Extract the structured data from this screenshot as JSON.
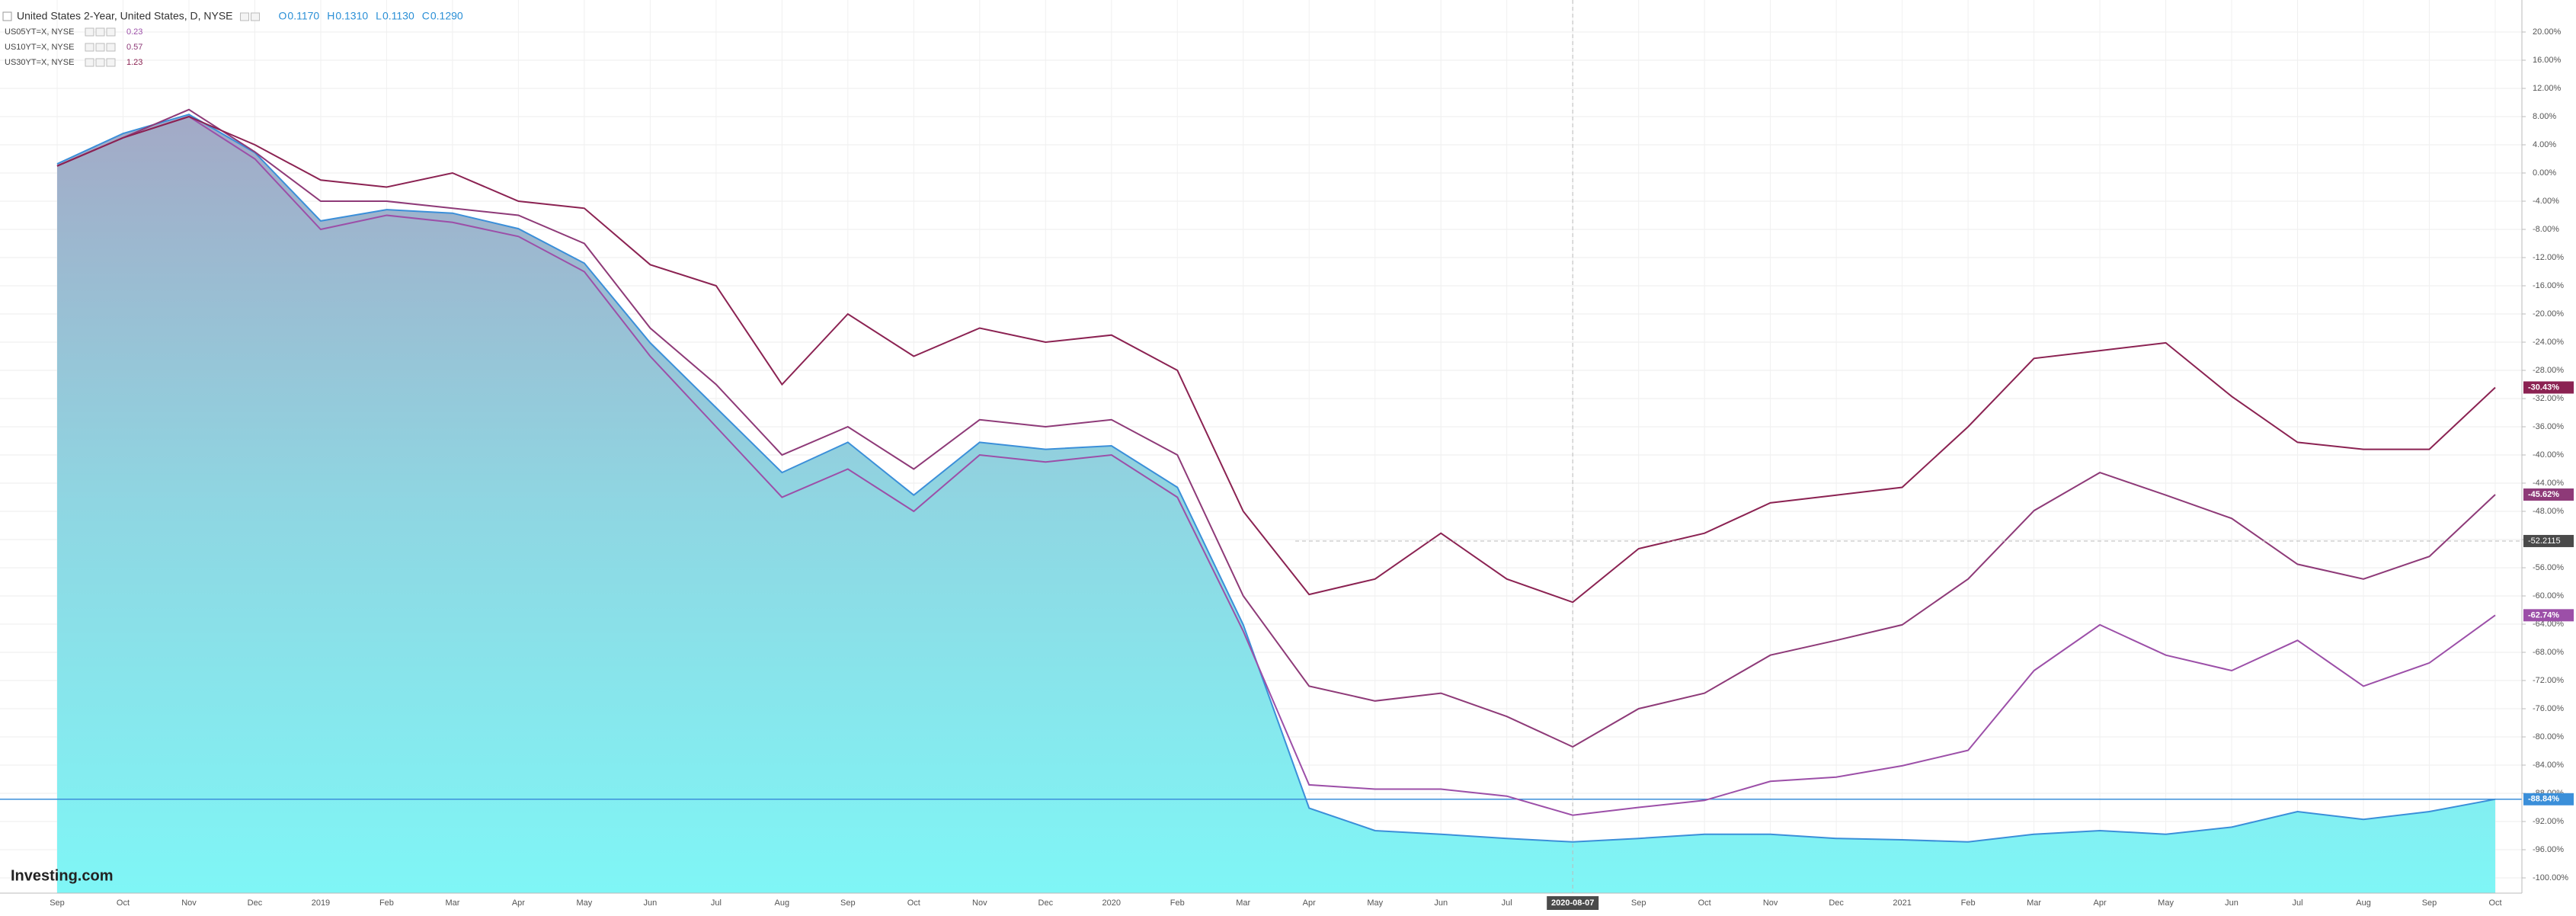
{
  "chart_data": {
    "type": "line",
    "watermark": "Investing.com",
    "ohlc": [
      {
        "label": "O",
        "value": "0.1170"
      },
      {
        "label": "H",
        "value": "0.1310"
      },
      {
        "label": "L",
        "value": "0.1130"
      },
      {
        "label": "C",
        "value": "0.1290"
      }
    ],
    "categories": [
      "Sep",
      "Oct",
      "Nov",
      "Dec",
      "2019",
      "Feb",
      "Mar",
      "Apr",
      "May",
      "Jun",
      "Jul",
      "Aug",
      "Sep",
      "Oct",
      "Nov",
      "Dec",
      "2020",
      "Feb",
      "Mar",
      "Apr",
      "May",
      "Jun",
      "Jul",
      null,
      "Sep",
      "Oct",
      "Nov",
      "Dec",
      "2021",
      "Feb",
      "Mar",
      "Apr",
      "May",
      "Jun",
      "Jul",
      "Aug",
      "Sep",
      "Oct"
    ],
    "series": [
      {
        "name": "United States 2-Year, United States, D, NYSE",
        "color": "#3b8fd9",
        "area": true,
        "last_value_label": "-88.84%",
        "values": [
          1.3,
          5.6,
          8.3,
          2.9,
          -6.8,
          -5.2,
          -5.7,
          -7.9,
          -12.8,
          -24.1,
          -33.3,
          -42.5,
          -38.2,
          -45.7,
          -38.2,
          -39.2,
          -38.7,
          -44.6,
          -64.1,
          -90.1,
          -93.3,
          -93.8,
          -94.4,
          -94.9,
          -94.4,
          -93.8,
          -93.8,
          -94.4,
          -94.6,
          -94.9,
          -93.8,
          -93.3,
          -93.8,
          -92.8,
          -90.6,
          -91.7,
          -90.6,
          -88.84
        ]
      },
      {
        "name": "US05YT=X, NYSE",
        "legend_value": "0.23",
        "color": "#9c4fa8",
        "last_value_label": "-62.74%",
        "values": [
          1,
          5,
          8,
          2,
          -8,
          -6,
          -7,
          -9,
          -14,
          -26,
          -36,
          -46,
          -42,
          -48,
          -40,
          -41,
          -40,
          -46,
          -65,
          -86.8,
          -87.4,
          -87.4,
          -88.4,
          -91.1,
          -90,
          -89,
          -86.3,
          -85.7,
          -84.1,
          -81.9,
          -70.6,
          -64.1,
          -68.4,
          -70.6,
          -66.3,
          -72.8,
          -69.5,
          -62.74
        ]
      },
      {
        "name": "US10YT=X, NYSE",
        "legend_value": "0.57",
        "color": "#8e3a78",
        "last_value_label": "-45.62%",
        "values": [
          1,
          5,
          9,
          3,
          -4,
          -4,
          -5,
          -6,
          -10,
          -22,
          -30,
          -40,
          -36,
          -42,
          -35,
          -36,
          -35,
          -40,
          -60,
          -72.8,
          -74.9,
          -73.8,
          -77.1,
          -81.4,
          -76,
          -73.8,
          -68.4,
          -66.3,
          -64.1,
          -57.6,
          -47.9,
          -42.5,
          -45.7,
          -49,
          -55.5,
          -57.6,
          -54.4,
          -45.62
        ]
      },
      {
        "name": "US30YT=X, NYSE",
        "legend_value": "1.23",
        "color": "#8b2252",
        "last_value_label": "-30.43%",
        "values": [
          1,
          5,
          8,
          4,
          -1,
          -2,
          0,
          -4,
          -5,
          -13,
          -16,
          -30,
          -20,
          -26,
          -22,
          -24,
          -23,
          -28,
          -48,
          -59.8,
          -57.6,
          -51.1,
          -57.6,
          -60.9,
          -53.3,
          -51.1,
          -46.8,
          -45.7,
          -44.6,
          -36,
          -26.3,
          -25.2,
          -24.1,
          -31.7,
          -38.2,
          -39.2,
          -39.2,
          -30.43
        ]
      }
    ],
    "crosshair": {
      "x_index": 23,
      "x_label": "2020-08-07",
      "y": -52.2115,
      "y_label": "-52.2115"
    },
    "ylim": [
      -100,
      20
    ],
    "yticks": [
      {
        "value": 20,
        "label": "20.00%"
      },
      {
        "value": 16,
        "label": "16.00%"
      },
      {
        "value": 12,
        "label": "12.00%"
      },
      {
        "value": 8,
        "label": "8.00%"
      },
      {
        "value": 4,
        "label": "4.00%"
      },
      {
        "value": 0,
        "label": "0.00%"
      },
      {
        "value": -4,
        "label": "-4.00%"
      },
      {
        "value": -8,
        "label": "-8.00%"
      },
      {
        "value": -12,
        "label": "-12.00%"
      },
      {
        "value": -16,
        "label": "-16.00%"
      },
      {
        "value": -20,
        "label": "-20.00%"
      },
      {
        "value": -24,
        "label": "-24.00%"
      },
      {
        "value": -28,
        "label": "-28.00%"
      },
      {
        "value": -32,
        "label": "-32.00%"
      },
      {
        "value": -36,
        "label": "-36.00%"
      },
      {
        "value": -40,
        "label": "-40.00%"
      },
      {
        "value": -44,
        "label": "-44.00%"
      },
      {
        "value": -48,
        "label": "-48.00%"
      },
      {
        "value": -52,
        "label": "-52.00%"
      },
      {
        "value": -56,
        "label": "-56.00%"
      },
      {
        "value": -60,
        "label": "-60.00%"
      },
      {
        "value": -64,
        "label": "-64.00%"
      },
      {
        "value": -68,
        "label": "-68.00%"
      },
      {
        "value": -72,
        "label": "-72.00%"
      },
      {
        "value": -76,
        "label": "-76.00%"
      },
      {
        "value": -80,
        "label": "-80.00%"
      },
      {
        "value": -84,
        "label": "-84.00%"
      },
      {
        "value": -88,
        "label": "-88.00%"
      },
      {
        "value": -92,
        "label": "-92.00%"
      },
      {
        "value": -96,
        "label": "-96.00%"
      },
      {
        "value": -100,
        "label": "-100.00%"
      }
    ],
    "grid": true
  }
}
